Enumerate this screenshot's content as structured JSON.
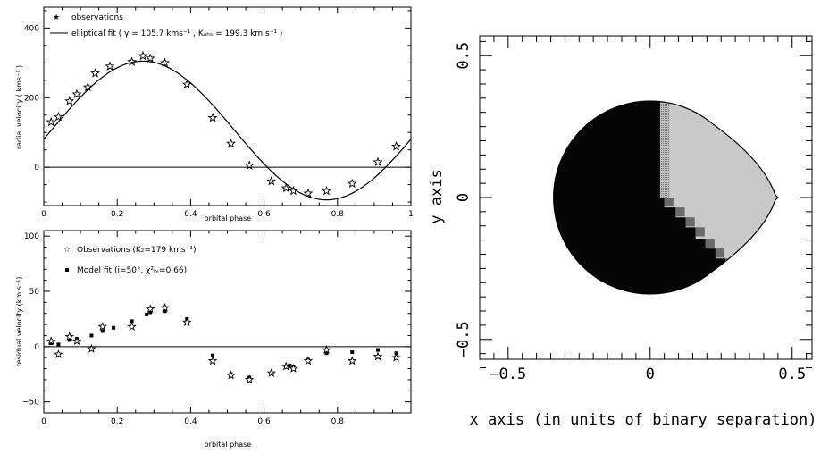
{
  "chart_data": [
    {
      "type": "scatter",
      "xlabel": "orbital phase",
      "ylabel": "radial velocity ( kms⁻¹ )",
      "xlim": [
        0,
        1
      ],
      "ylim": [
        -110,
        460
      ],
      "xticks": [
        "0",
        "0.2",
        "0.4",
        "0.6",
        "0.8",
        "1"
      ],
      "yticks": [
        "0",
        "200",
        "400"
      ],
      "legend": {
        "placement": "top-left",
        "entries": [
          "observations",
          "elliptical fit ( γ = 105.7 kms⁻¹ , Kₐₕₛ = 199.3 km s⁻¹ )"
        ]
      },
      "fit": {
        "gamma": 105.7,
        "K": 199.3,
        "phase_of_max": 0.27
      },
      "series": [
        {
          "name": "observations",
          "marker": "star",
          "x": [
            0.02,
            0.04,
            0.07,
            0.09,
            0.12,
            0.14,
            0.18,
            0.24,
            0.27,
            0.29,
            0.33,
            0.39,
            0.46,
            0.51,
            0.56,
            0.62,
            0.66,
            0.68,
            0.72,
            0.77,
            0.84,
            0.91,
            0.96
          ],
          "y": [
            130,
            145,
            190,
            210,
            230,
            270,
            290,
            303,
            320,
            313,
            300,
            238,
            142,
            68,
            5,
            -40,
            -60,
            -68,
            -75,
            -68,
            -47,
            15,
            60
          ]
        }
      ]
    },
    {
      "type": "scatter",
      "xlabel": "orbital phase",
      "ylabel": "residual velocity (km s⁻¹)",
      "xlim": [
        0,
        1
      ],
      "ylim": [
        -60,
        105
      ],
      "xticks": [
        "0",
        "0.2",
        "0.4",
        "0.6",
        "0.8"
      ],
      "yticks": [
        "−50",
        "0",
        "50",
        "100"
      ],
      "legend": {
        "placement": "top-left",
        "entries": [
          "Observations (K₂=179 kms⁻¹)",
          "Model fit (i=50°, χ²ᵣᵥ=0.66)"
        ]
      },
      "series": [
        {
          "name": "Observations (K₂=179 kms⁻¹)",
          "marker": "star",
          "x": [
            0.02,
            0.04,
            0.07,
            0.09,
            0.13,
            0.16,
            0.24,
            0.29,
            0.33,
            0.39,
            0.46,
            0.51,
            0.56,
            0.62,
            0.66,
            0.68,
            0.72,
            0.77,
            0.84,
            0.91,
            0.96
          ],
          "y": [
            5,
            -7,
            9,
            5,
            -2,
            18,
            18,
            34,
            35,
            22,
            -13,
            -26,
            -30,
            -24,
            -18,
            -20,
            -13,
            -3,
            -13,
            -9,
            -10
          ]
        },
        {
          "name": "Model fit (i=50°, χ²ᵣᵥ=0.66)",
          "marker": "square",
          "x": [
            0.02,
            0.04,
            0.07,
            0.09,
            0.13,
            0.16,
            0.19,
            0.24,
            0.28,
            0.29,
            0.33,
            0.39,
            0.46,
            0.51,
            0.56,
            0.62,
            0.67,
            0.68,
            0.72,
            0.77,
            0.84,
            0.91,
            0.96
          ],
          "y": [
            3,
            2,
            6,
            7,
            10,
            14,
            17,
            23,
            29,
            31,
            32,
            25,
            -8,
            -25,
            -28,
            -24,
            -17,
            -18,
            -12,
            -6,
            -5,
            -3,
            -6
          ]
        }
      ]
    },
    {
      "type": "heatmap",
      "xlabel": "x axis (in units of binary separation)",
      "ylabel": "y axis",
      "xlim": [
        -0.6,
        0.57
      ],
      "ylim": [
        -0.57,
        0.57
      ],
      "xticks": [
        "−0.5",
        "0",
        "0.5"
      ],
      "yticks": [
        "−0.5",
        "0",
        "0.5"
      ],
      "shape": {
        "name": "Roche-lobe filling star",
        "disk_center": [
          0,
          0
        ],
        "disk_radius": 0.34,
        "tip_x": 0.45
      },
      "colors": {
        "dark": "#050505",
        "light": "#c9c9c9",
        "mid": "#6a6a6a"
      }
    }
  ]
}
